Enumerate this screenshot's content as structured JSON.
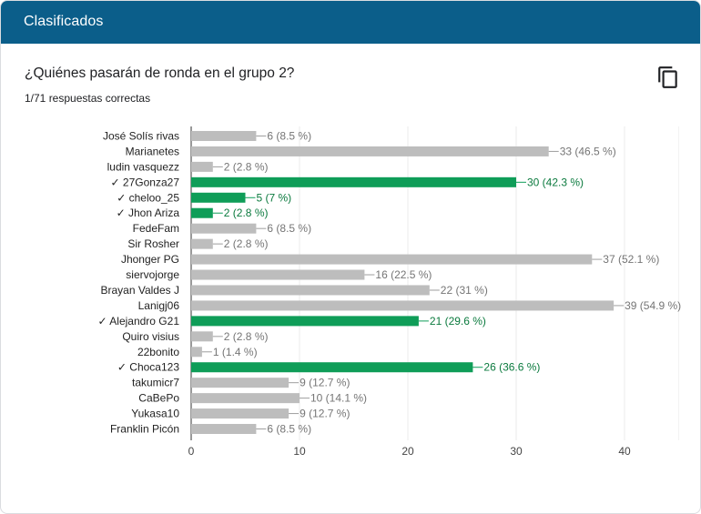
{
  "header": {
    "title": "Clasificados"
  },
  "question": {
    "title": "¿Quiénes pasarán de ronda en el grupo 2?",
    "subtitle": "1/71 respuestas correctas"
  },
  "icons": {
    "copy": "copy-icon"
  },
  "colors": {
    "header": "#0b5e8a",
    "correct": "#0f9d58",
    "incorrect": "#bdbdbd",
    "correct_text": "#0b7a3e",
    "incorrect_text": "#757575"
  },
  "chart_data": {
    "type": "bar",
    "orientation": "horizontal",
    "categories": [
      "José Solís rivas",
      "Marianetes",
      "ludin vasquezz",
      "27Gonza27",
      "cheloo_25",
      "Jhon Ariza",
      "FedeFam",
      "Sir Rosher",
      "Jhonger PG",
      "siervojorge",
      "Brayan Valdes J",
      "Lanigj06",
      "Alejandro G21",
      "Quiro visius",
      "22bonito",
      "Choca123",
      "takumicr7",
      "CaBePo",
      "Yukasa10",
      "Franklin Picón"
    ],
    "correct": [
      false,
      false,
      false,
      true,
      true,
      true,
      false,
      false,
      false,
      false,
      false,
      false,
      true,
      false,
      false,
      true,
      false,
      false,
      false,
      false
    ],
    "values": [
      6,
      33,
      2,
      30,
      5,
      2,
      6,
      2,
      37,
      16,
      22,
      39,
      21,
      2,
      1,
      26,
      9,
      10,
      9,
      6
    ],
    "value_labels": [
      "6 (8.5 %)",
      "33 (46.5 %)",
      "2 (2.8 %)",
      "30 (42.3 %)",
      "5 (7 %)",
      "2 (2.8 %)",
      "6 (8.5 %)",
      "2 (2.8 %)",
      "37 (52.1 %)",
      "16 (22.5 %)",
      "22 (31 %)",
      "39 (54.9 %)",
      "21 (29.6 %)",
      "2 (2.8 %)",
      "1 (1.4 %)",
      "26 (36.6 %)",
      "9 (12.7 %)",
      "10 (14.1 %)",
      "9 (12.7 %)",
      "6 (8.5 %)"
    ],
    "check_mark": "✓",
    "xticks": [
      "0",
      "10",
      "20",
      "30",
      "40"
    ],
    "xlim": [
      0,
      40
    ],
    "grid": true,
    "legend": "none"
  }
}
